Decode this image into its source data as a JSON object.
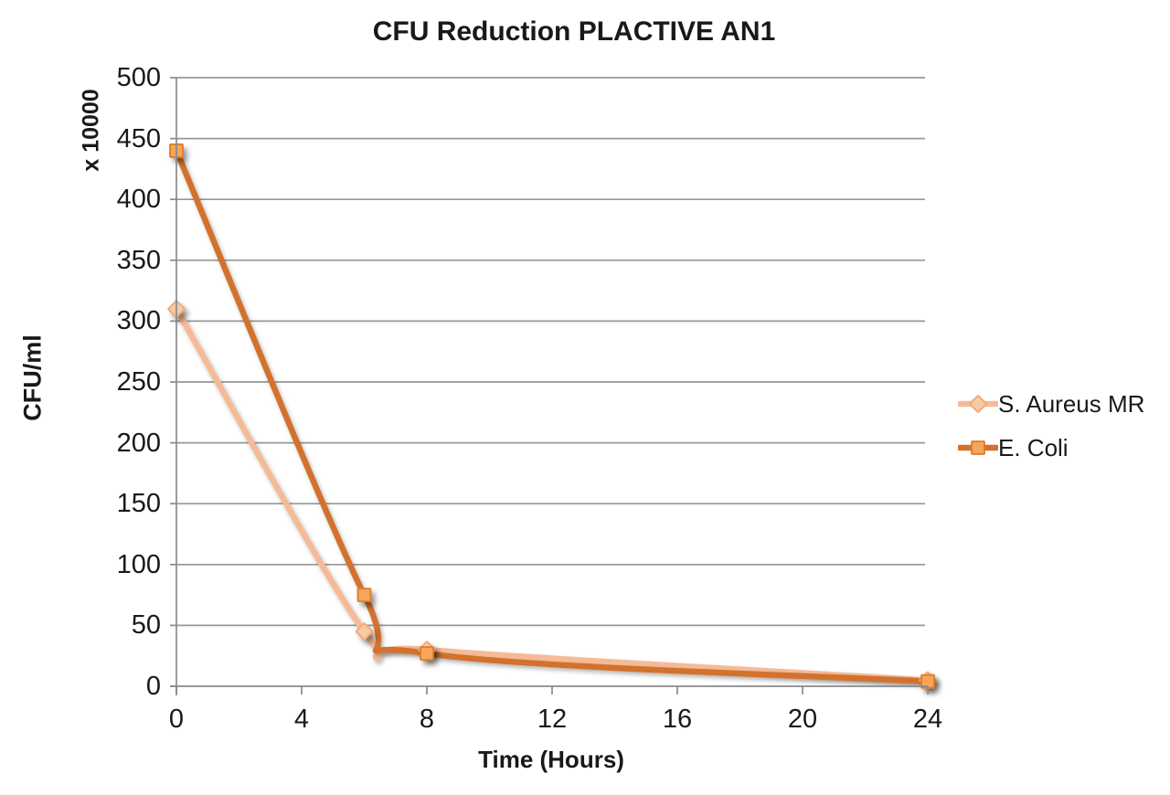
{
  "chart_data": {
    "type": "line",
    "title": "CFU Reduction PLACTIVE AN1",
    "xlabel": "Time (Hours)",
    "ylabel": "CFU/ml",
    "y_multiplier_label": "x 10000",
    "x": [
      0,
      6,
      8,
      24
    ],
    "series": [
      {
        "name": "S. Aureus MR",
        "values": [
          310,
          45,
          30,
          5
        ],
        "marker": "diamond",
        "line_color": "#F5BB97",
        "marker_fill": "#FAC8A2",
        "marker_stroke": "#F0A877"
      },
      {
        "name": "E. Coli",
        "values": [
          440,
          75,
          27,
          4
        ],
        "marker": "square",
        "line_color": "#D2722E",
        "marker_fill": "#F6A55A",
        "marker_stroke": "#DE7D29"
      }
    ],
    "xlim": [
      0,
      24
    ],
    "ylim": [
      0,
      500
    ],
    "x_ticks": [
      0,
      4,
      8,
      12,
      16,
      20,
      24
    ],
    "y_ticks": [
      0,
      50,
      100,
      150,
      200,
      250,
      300,
      350,
      400,
      450,
      500
    ],
    "grid": "horizontal-only",
    "grid_color": "#979797",
    "axis_color": "#8A8A8A",
    "text_color": "#191919",
    "legend_position": "right",
    "smoothed_lines": true,
    "background_color": "#FFFFFF"
  }
}
